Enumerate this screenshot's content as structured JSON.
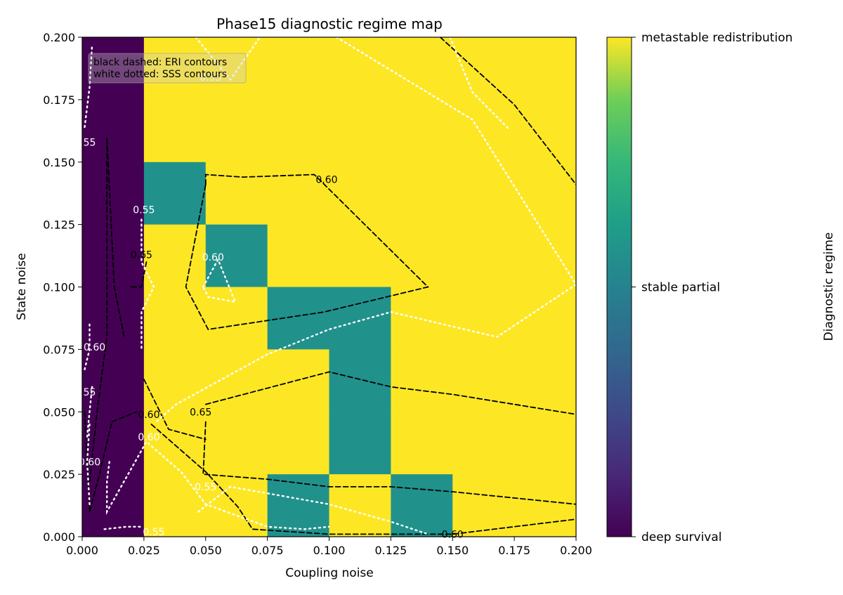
{
  "chart_data": {
    "type": "heatmap",
    "title": "Phase15 diagnostic regime map",
    "xlabel": "Coupling noise",
    "ylabel": "State noise",
    "xlim": [
      0.0,
      0.2
    ],
    "ylim": [
      0.0,
      0.2
    ],
    "xticks": [
      "0.000",
      "0.025",
      "0.050",
      "0.075",
      "0.100",
      "0.125",
      "0.150",
      "0.175",
      "0.200"
    ],
    "yticks": [
      "0.000",
      "0.025",
      "0.050",
      "0.075",
      "0.100",
      "0.125",
      "0.150",
      "0.175",
      "0.200"
    ],
    "cell_size": 0.025,
    "regimes": [
      "deep survival",
      "stable partial",
      "metastable redistribution"
    ],
    "regime_colors": [
      "#440154",
      "#21918c",
      "#fde725"
    ],
    "grid": [
      [
        0,
        2,
        2,
        2,
        2,
        2,
        2,
        2
      ],
      [
        0,
        2,
        2,
        2,
        2,
        2,
        2,
        2
      ],
      [
        0,
        1,
        2,
        2,
        2,
        2,
        2,
        2
      ],
      [
        0,
        2,
        1,
        2,
        2,
        2,
        2,
        2
      ],
      [
        0,
        2,
        2,
        1,
        1,
        2,
        2,
        2
      ],
      [
        0,
        2,
        2,
        2,
        1,
        2,
        2,
        2
      ],
      [
        0,
        2,
        2,
        2,
        1,
        2,
        2,
        2
      ],
      [
        0,
        2,
        2,
        1,
        2,
        1,
        2,
        2
      ]
    ],
    "colorbar_label": "Diagnostic regime",
    "legend_lines": [
      "black dashed: ERI contours",
      "white dotted: SSS contours"
    ],
    "legend_placement": "top-left",
    "eri_contours": [
      {
        "label": "0.60",
        "points": [
          [
            0.05,
            0.141
          ],
          [
            0.05,
            0.145
          ],
          [
            0.065,
            0.144
          ],
          [
            0.094,
            0.145
          ],
          [
            0.14,
            0.1
          ],
          [
            0.098,
            0.09
          ],
          [
            0.051,
            0.083
          ],
          [
            0.042,
            0.1
          ],
          [
            0.05,
            0.141
          ]
        ],
        "label_at": [
          0.099,
          0.143
        ]
      },
      {
        "label": "0.65",
        "points": [
          [
            0.05,
            0.053
          ],
          [
            0.1,
            0.066
          ],
          [
            0.125,
            0.06
          ],
          [
            0.15,
            0.057
          ],
          [
            0.2,
            0.049
          ]
        ],
        "label_at": [
          0.048,
          0.05
        ]
      },
      {
        "label": "0.65",
        "points": [
          [
            0.05,
            0.046
          ],
          [
            0.049,
            0.025
          ],
          [
            0.075,
            0.023
          ],
          [
            0.1,
            0.02
          ],
          [
            0.125,
            0.02
          ],
          [
            0.15,
            0.018
          ],
          [
            0.2,
            0.013
          ]
        ]
      },
      {
        "label": "0.60",
        "points": [
          [
            0.028,
            0.045
          ],
          [
            0.05,
            0.026
          ],
          [
            0.063,
            0.012
          ],
          [
            0.069,
            0.003
          ],
          [
            0.1,
            0.001
          ],
          [
            0.15,
            0.001
          ],
          [
            0.2,
            0.007
          ]
        ],
        "label_at": [
          0.15,
          0.001
        ]
      },
      {
        "label": "",
        "points": [
          [
            0.025,
            0.063
          ],
          [
            0.035,
            0.043
          ],
          [
            0.05,
            0.039
          ]
        ]
      },
      {
        "label": "",
        "points": [
          [
            0.145,
            0.2
          ],
          [
            0.175,
            0.173
          ],
          [
            0.2,
            0.141
          ]
        ],
        "label_at": [
          0.197,
          0.143
        ]
      },
      {
        "label": "",
        "points": [
          [
            0.02,
            0.1
          ],
          [
            0.024,
            0.1
          ],
          [
            0.026,
            0.11
          ]
        ]
      },
      {
        "label": "0.65",
        "points": [
          [
            0.003,
            0.022
          ],
          [
            0.006,
            0.05
          ],
          [
            0.01,
            0.08
          ],
          [
            0.01,
            0.16
          ],
          [
            0.013,
            0.1
          ],
          [
            0.017,
            0.08
          ]
        ],
        "label_at": [
          0.024,
          0.113
        ]
      },
      {
        "label": "0.60",
        "points": [
          [
            0.001,
            0.05
          ],
          [
            0.003,
            0.01
          ],
          [
            0.007,
            0.025
          ],
          [
            0.012,
            0.046
          ],
          [
            0.022,
            0.05
          ]
        ],
        "label_at": [
          0.027,
          0.049
        ]
      }
    ],
    "sss_contours": [
      {
        "label": "0.55",
        "points": [
          [
            0.046,
            0.2
          ],
          [
            0.06,
            0.183
          ],
          [
            0.072,
            0.2
          ]
        ],
        "label_at": [
          0.052,
          0.184
        ]
      },
      {
        "label": "",
        "points": [
          [
            0.103,
            0.2
          ],
          [
            0.158,
            0.167
          ],
          [
            0.2,
            0.101
          ],
          [
            0.168,
            0.08
          ],
          [
            0.125,
            0.09
          ],
          [
            0.1,
            0.083
          ],
          [
            0.075,
            0.073
          ],
          [
            0.038,
            0.053
          ],
          [
            0.03,
            0.046
          ]
        ]
      },
      {
        "label": "",
        "points": [
          [
            0.149,
            0.2
          ],
          [
            0.158,
            0.178
          ],
          [
            0.173,
            0.163
          ]
        ]
      },
      {
        "label": "0.60",
        "points": [
          [
            0.049,
            0.1
          ],
          [
            0.055,
            0.111
          ],
          [
            0.062,
            0.094
          ],
          [
            0.051,
            0.096
          ],
          [
            0.049,
            0.1
          ]
        ],
        "label_at": [
          0.053,
          0.112
        ]
      },
      {
        "label": "0.55",
        "points": [
          [
            0.024,
            0.127
          ],
          [
            0.024,
            0.11
          ],
          [
            0.029,
            0.1
          ],
          [
            0.024,
            0.09
          ],
          [
            0.024,
            0.075
          ]
        ],
        "label_at": [
          0.025,
          0.131
        ]
      },
      {
        "label": "0.55",
        "points": [
          [
            0.047,
            0.01
          ],
          [
            0.06,
            0.02
          ],
          [
            0.1,
            0.013
          ],
          [
            0.125,
            0.006
          ],
          [
            0.14,
            0.001
          ]
        ],
        "label_at": [
          0.05,
          0.02
        ]
      },
      {
        "label": "0.60",
        "points": [
          [
            0.011,
            0.03
          ],
          [
            0.01,
            0.022
          ],
          [
            0.01,
            0.01
          ],
          [
            0.026,
            0.038
          ],
          [
            0.04,
            0.026
          ],
          [
            0.05,
            0.013
          ],
          [
            0.075,
            0.004
          ],
          [
            0.09,
            0.003
          ],
          [
            0.1,
            0.004
          ]
        ],
        "label_at": [
          0.027,
          0.04
        ]
      },
      {
        "label": "0.60",
        "points": [
          [
            0.001,
            0.067
          ],
          [
            0.003,
            0.075
          ],
          [
            0.003,
            0.085
          ]
        ],
        "label_at": [
          0.005,
          0.076
        ]
      },
      {
        "label": "55",
        "points": [
          [
            0.001,
            0.164
          ],
          [
            0.003,
            0.18
          ],
          [
            0.004,
            0.197
          ]
        ],
        "label_at": [
          0.003,
          0.158
        ]
      },
      {
        "label": "55",
        "points": [
          [
            0.002,
            0.04
          ],
          [
            0.003,
            0.05
          ],
          [
            0.004,
            0.06
          ]
        ],
        "label_at": [
          0.003,
          0.058
        ]
      },
      {
        "label": "0.60",
        "points": [
          [
            0.003,
            0.045
          ],
          [
            0.002,
            0.03
          ],
          [
            0.003,
            0.013
          ]
        ],
        "label_at": [
          0.003,
          0.03
        ]
      },
      {
        "label": "0.55",
        "points": [
          [
            0.009,
            0.003
          ],
          [
            0.018,
            0.004
          ],
          [
            0.024,
            0.004
          ]
        ],
        "label_at": [
          0.029,
          0.002
        ]
      }
    ]
  }
}
